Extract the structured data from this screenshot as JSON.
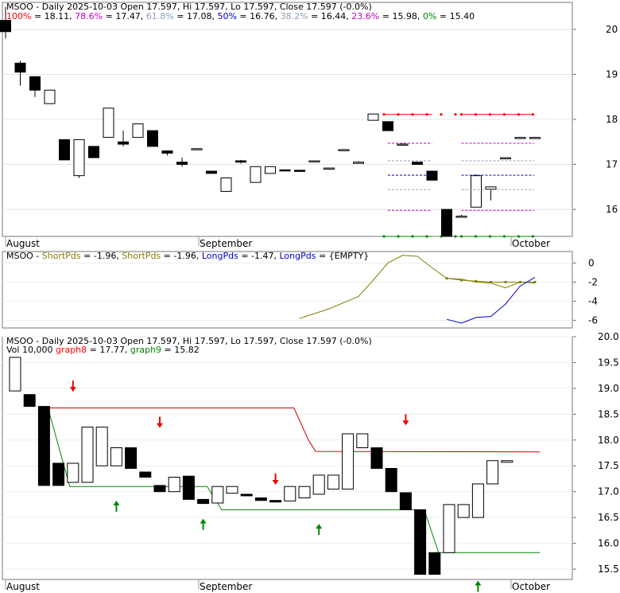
{
  "chart_data": [
    {
      "type": "candlestick",
      "panel": "price-fib",
      "title_ticker": "MSOO",
      "title_parts": [
        {
          "text": "MSOO - Daily 2025-10-03 Open 17.597, Hi 17.597, Lo 17.597, Close 17.597 (-0.0%)",
          "color": "#000000"
        }
      ],
      "fib_legend": [
        {
          "label": "100%",
          "value": "18.11",
          "color": "#ff0000"
        },
        {
          "label": "78.6%",
          "value": "17.47",
          "color": "#cc00cc"
        },
        {
          "label": "61.8%",
          "value": "17.08",
          "color": "#8fa0b8"
        },
        {
          "label": "50%",
          "value": "16.76",
          "color": "#0000cc"
        },
        {
          "label": "38.2%",
          "value": "16.44",
          "color": "#8fa0b8"
        },
        {
          "label": "23.6%",
          "value": "15.98",
          "color": "#cc00cc"
        },
        {
          "label": "0%",
          "value": "15.40",
          "color": "#008800"
        }
      ],
      "y_ticks": [
        "20",
        "19",
        "18",
        "17",
        "16"
      ],
      "ylim": [
        15.4,
        20.6
      ],
      "x_labels": [
        "August",
        "September",
        "October"
      ],
      "candles": [
        {
          "o": 20.2,
          "h": 20.5,
          "l": 19.8,
          "c": 19.95
        },
        {
          "o": 19.25,
          "h": 19.3,
          "l": 18.75,
          "c": 19.05
        },
        {
          "o": 18.95,
          "h": 18.95,
          "l": 18.5,
          "c": 18.65
        },
        {
          "o": 18.35,
          "h": 18.65,
          "l": 18.35,
          "c": 18.65
        },
        {
          "o": 17.55,
          "h": 17.55,
          "l": 17.1,
          "c": 17.1
        },
        {
          "o": 16.75,
          "h": 17.55,
          "l": 16.7,
          "c": 17.55
        },
        {
          "o": 17.4,
          "h": 17.4,
          "l": 17.15,
          "c": 17.15
        },
        {
          "o": 17.6,
          "h": 18.25,
          "l": 17.6,
          "c": 18.25
        },
        {
          "o": 17.5,
          "h": 17.75,
          "l": 17.4,
          "c": 17.45
        },
        {
          "o": 17.6,
          "h": 17.9,
          "l": 17.6,
          "c": 17.9
        },
        {
          "o": 17.75,
          "h": 17.75,
          "l": 17.4,
          "c": 17.4
        },
        {
          "o": 17.3,
          "h": 17.3,
          "l": 17.2,
          "c": 17.25
        },
        {
          "o": 17.05,
          "h": 17.15,
          "l": 16.95,
          "c": 17.0
        },
        {
          "o": 17.35,
          "h": 17.35,
          "l": 17.35,
          "c": 17.35
        },
        {
          "o": 16.85,
          "h": 16.85,
          "l": 16.8,
          "c": 16.8
        },
        {
          "o": 16.4,
          "h": 16.7,
          "l": 16.4,
          "c": 16.7
        },
        {
          "o": 17.08,
          "h": 17.1,
          "l": 17.02,
          "c": 17.05
        },
        {
          "o": 16.6,
          "h": 16.95,
          "l": 16.6,
          "c": 16.95
        },
        {
          "o": 16.8,
          "h": 16.95,
          "l": 16.8,
          "c": 16.95
        },
        {
          "o": 16.88,
          "h": 16.88,
          "l": 16.86,
          "c": 16.86
        },
        {
          "o": 16.87,
          "h": 16.87,
          "l": 16.85,
          "c": 16.85
        },
        {
          "o": 17.07,
          "h": 17.08,
          "l": 17.05,
          "c": 17.08
        },
        {
          "o": 16.9,
          "h": 16.92,
          "l": 16.88,
          "c": 16.92
        },
        {
          "o": 17.32,
          "h": 17.33,
          "l": 17.32,
          "c": 17.33
        },
        {
          "o": 17.05,
          "h": 17.07,
          "l": 17.04,
          "c": 17.05
        },
        {
          "o": 17.98,
          "h": 18.12,
          "l": 17.98,
          "c": 18.12
        },
        {
          "o": 17.95,
          "h": 17.95,
          "l": 17.75,
          "c": 17.75
        },
        {
          "o": 17.45,
          "h": 17.47,
          "l": 17.43,
          "c": 17.45
        },
        {
          "o": 17.05,
          "h": 17.05,
          "l": 17.0,
          "c": 17.0
        },
        {
          "o": 16.85,
          "h": 16.85,
          "l": 16.65,
          "c": 16.65
        },
        {
          "o": 16.0,
          "h": 16.0,
          "l": 15.4,
          "c": 15.4
        },
        {
          "o": 15.85,
          "h": 15.88,
          "l": 15.84,
          "c": 15.85
        },
        {
          "o": 16.05,
          "h": 16.78,
          "l": 16.05,
          "c": 16.75
        },
        {
          "o": 16.45,
          "h": 16.5,
          "l": 16.2,
          "c": 16.5
        },
        {
          "o": 17.15,
          "h": 17.16,
          "l": 17.14,
          "c": 17.15
        },
        {
          "o": 17.6,
          "h": 17.61,
          "l": 17.59,
          "c": 17.6
        },
        {
          "o": 17.6,
          "h": 17.6,
          "l": 17.6,
          "c": 17.6
        }
      ],
      "fib_lines": [
        {
          "value": 18.11,
          "color": "#ff0000"
        },
        {
          "value": 17.47,
          "color": "#cc00cc"
        },
        {
          "value": 17.08,
          "color": "#8fa0b8"
        },
        {
          "value": 16.76,
          "color": "#0000cc"
        },
        {
          "value": 16.44,
          "color": "#8fa0b8"
        },
        {
          "value": 15.98,
          "color": "#cc00cc"
        },
        {
          "value": 15.4,
          "color": "#008800"
        }
      ]
    },
    {
      "type": "line",
      "panel": "indicator",
      "legend_parts": [
        {
          "text": "MSOO - ",
          "color": "#000000"
        },
        {
          "text": "ShortPds",
          "color": "#808000"
        },
        {
          "text": " = -1.96, ",
          "color": "#000000"
        },
        {
          "text": "ShortPds",
          "color": "#808000"
        },
        {
          "text": " = -1.96, ",
          "color": "#000000"
        },
        {
          "text": "LongPds",
          "color": "#0000cc"
        },
        {
          "text": " = -1.47, ",
          "color": "#000000"
        },
        {
          "text": "LongPds",
          "color": "#0000cc"
        },
        {
          "text": " = {EMPTY}",
          "color": "#000000"
        }
      ],
      "y_ticks": [
        "0",
        "-2",
        "-4",
        "-6"
      ],
      "ylim": [
        -6.8,
        1.2
      ],
      "series": [
        {
          "name": "ShortPds",
          "color": "#808000",
          "x": [
            20,
            22,
            24,
            25,
            26,
            27,
            28,
            29,
            30,
            31,
            32,
            33,
            34,
            35,
            36
          ],
          "values": [
            -5.8,
            -4.8,
            -3.5,
            -1.8,
            0.0,
            0.8,
            0.7,
            -0.5,
            -1.6,
            -1.7,
            -2.0,
            -2.1,
            -2.6,
            -2.0,
            -2.1
          ]
        },
        {
          "name": "ShortPds",
          "color": "#808000",
          "x": [
            30,
            31,
            32,
            33,
            34,
            35,
            36
          ],
          "values": [
            -1.6,
            -1.8,
            -1.9,
            -2.0,
            -2.0,
            -2.0,
            -2.0
          ]
        },
        {
          "name": "LongPds",
          "color": "#0000cc",
          "x": [
            30,
            31,
            32,
            33,
            34,
            35,
            36
          ],
          "values": [
            -5.9,
            -6.3,
            -5.7,
            -5.6,
            -4.3,
            -2.4,
            -1.5
          ]
        }
      ]
    },
    {
      "type": "candlestick",
      "panel": "price-stops",
      "title": "MSOO - Daily 2025-10-03 Open 17.597, Hi 17.597, Lo 17.597, Close 17.597 (-0.0%)",
      "legend_parts": [
        {
          "text": "Vol 10,000 ",
          "color": "#000000"
        },
        {
          "text": "graph8",
          "color": "#ff0000"
        },
        {
          "text": " = 17.77, ",
          "color": "#000000"
        },
        {
          "text": "graph9",
          "color": "#008800"
        },
        {
          "text": " = 15.82",
          "color": "#000000"
        }
      ],
      "y_ticks": [
        "20.0",
        "19.5",
        "19.0",
        "18.5",
        "18.0",
        "17.5",
        "17.0",
        "16.5",
        "16.0",
        "15.5"
      ],
      "ylim": [
        15.3,
        20.0
      ],
      "x_labels": [
        "August",
        "September",
        "October"
      ],
      "candles": [
        {
          "o": 18.95,
          "c": 19.6
        },
        {
          "o": 18.88,
          "c": 18.65
        },
        {
          "o": 18.65,
          "c": 17.12
        },
        {
          "o": 17.55,
          "c": 17.12
        },
        {
          "o": 17.18,
          "c": 17.55
        },
        {
          "o": 17.18,
          "c": 18.25
        },
        {
          "o": 17.5,
          "c": 18.25
        },
        {
          "o": 17.5,
          "c": 17.85
        },
        {
          "o": 17.85,
          "c": 17.45
        },
        {
          "o": 17.38,
          "c": 17.28
        },
        {
          "o": 17.12,
          "c": 17.0
        },
        {
          "o": 17.0,
          "c": 17.28
        },
        {
          "o": 17.3,
          "c": 16.85
        },
        {
          "o": 16.85,
          "c": 16.77
        },
        {
          "o": 16.78,
          "c": 17.1
        },
        {
          "o": 16.97,
          "c": 17.1
        },
        {
          "o": 16.95,
          "c": 16.93
        },
        {
          "o": 16.88,
          "c": 16.83
        },
        {
          "o": 16.83,
          "c": 16.8
        },
        {
          "o": 16.82,
          "c": 17.1
        },
        {
          "o": 16.88,
          "c": 17.1
        },
        {
          "o": 16.95,
          "c": 17.32
        },
        {
          "o": 17.05,
          "c": 17.32
        },
        {
          "o": 17.05,
          "c": 18.12
        },
        {
          "o": 17.85,
          "c": 18.12
        },
        {
          "o": 17.85,
          "c": 17.45
        },
        {
          "o": 17.45,
          "c": 17.0
        },
        {
          "o": 16.98,
          "c": 16.65
        },
        {
          "o": 16.65,
          "c": 15.4
        },
        {
          "o": 15.82,
          "c": 15.4
        },
        {
          "o": 15.82,
          "c": 16.75
        },
        {
          "o": 16.5,
          "c": 16.75
        },
        {
          "o": 16.5,
          "c": 17.15
        },
        {
          "o": 17.15,
          "c": 17.6
        },
        {
          "o": 17.6,
          "c": 17.6
        }
      ],
      "stop_lines": [
        {
          "name": "graph8",
          "color": "#cc0000",
          "points": [
            [
              2,
              18.62
            ],
            [
              19,
              18.62
            ],
            [
              20,
              18.0
            ],
            [
              20.5,
              17.78
            ],
            [
              36,
              17.77
            ]
          ]
        },
        {
          "name": "graph9",
          "color": "#008800",
          "points": [
            [
              2,
              18.62
            ],
            [
              3.5,
              17.1
            ],
            [
              13,
              17.1
            ],
            [
              14,
              16.65
            ],
            [
              28,
              16.65
            ],
            [
              29,
              15.82
            ],
            [
              36,
              15.82
            ]
          ]
        }
      ],
      "down_arrows": [
        {
          "i": 4,
          "value": 18.95
        },
        {
          "i": 10,
          "value": 18.25
        },
        {
          "i": 18,
          "value": 17.15
        },
        {
          "i": 27,
          "value": 18.3
        }
      ],
      "up_arrows": [
        {
          "i": 7,
          "value": 16.95
        },
        {
          "i": 13,
          "value": 16.6
        },
        {
          "i": 21,
          "value": 16.5
        },
        {
          "i": 32,
          "value": 15.4
        }
      ]
    }
  ]
}
